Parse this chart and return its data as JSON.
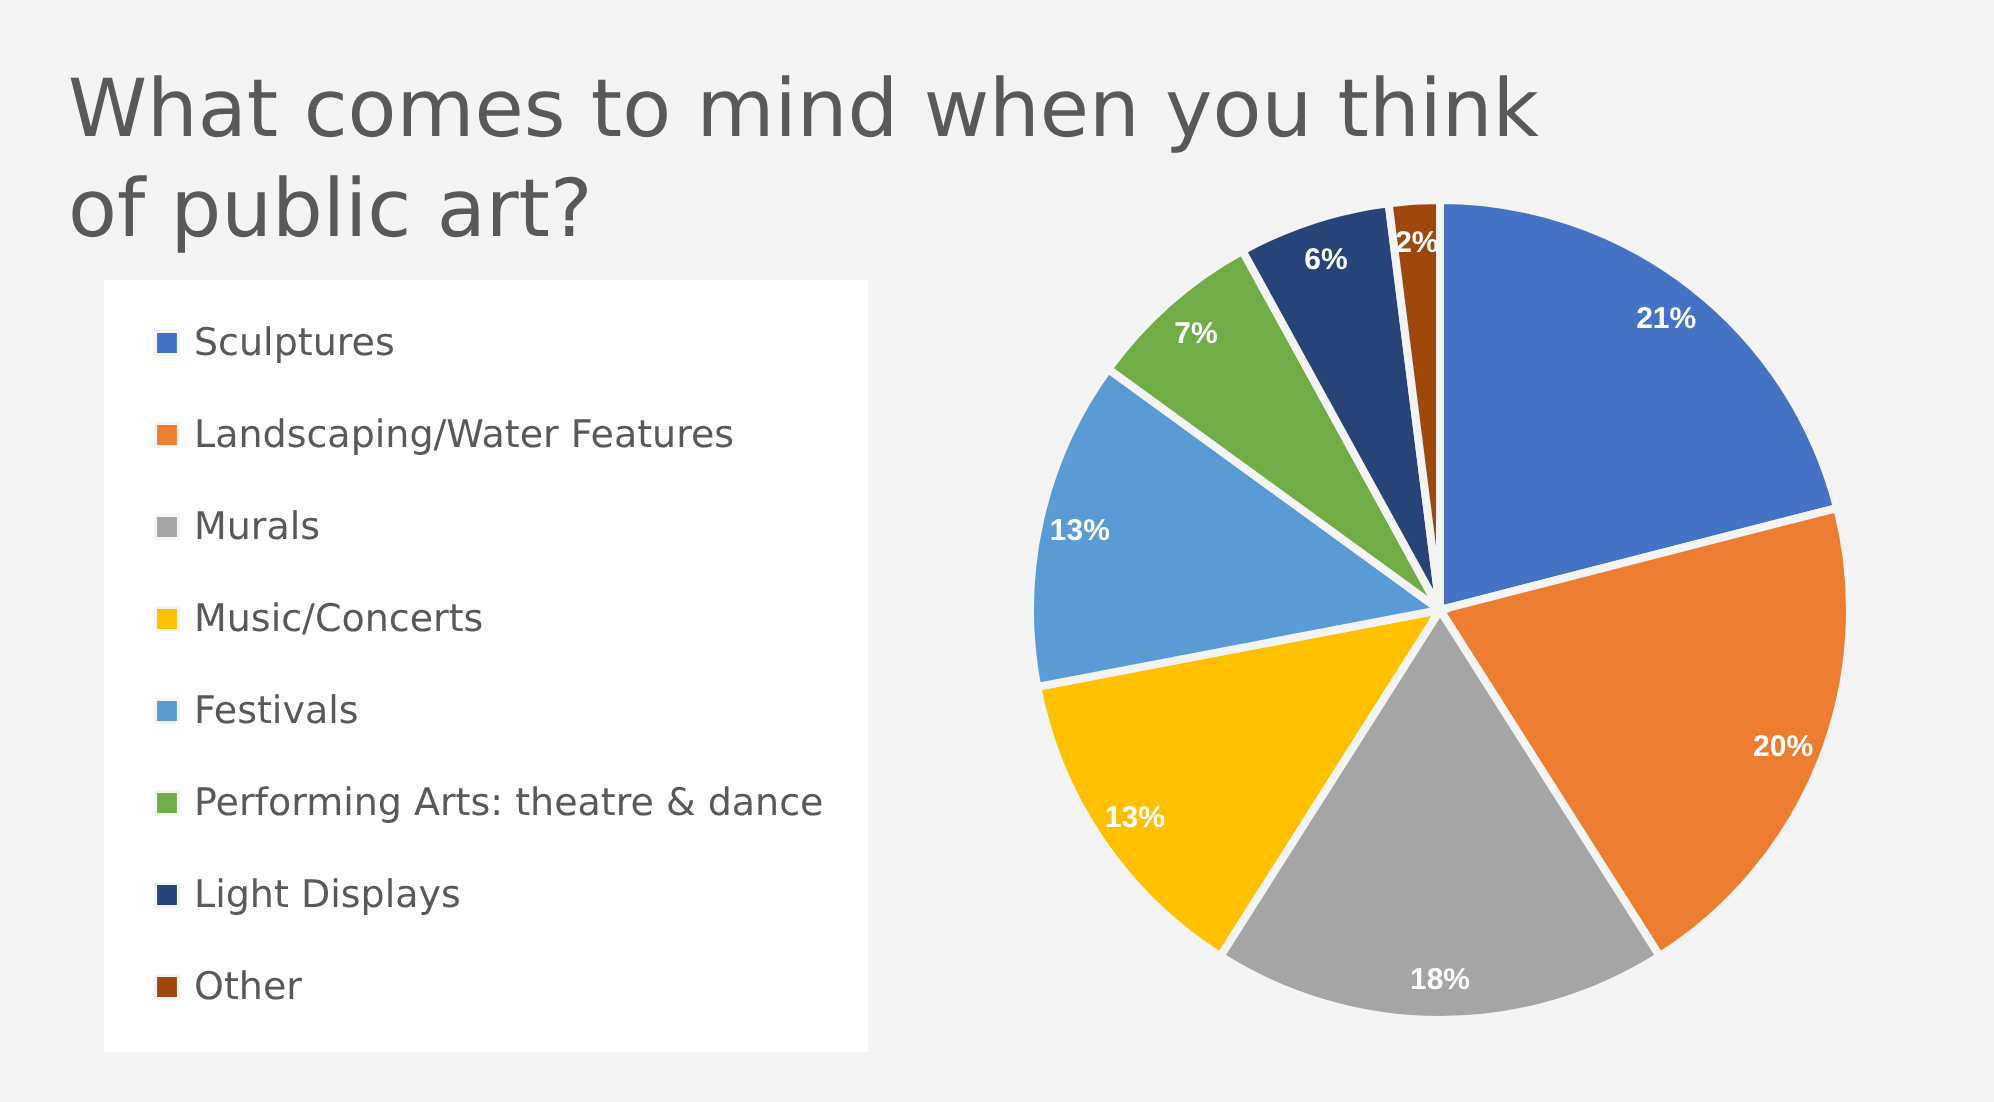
{
  "chart_data": {
    "type": "pie",
    "title": "What comes to mind when you think of public art?",
    "categories": [
      "Sculptures",
      "Landscaping/Water Features",
      "Murals",
      "Music/Concerts",
      "Festivals",
      "Performing Arts: theatre & dance",
      "Light Displays",
      "Other"
    ],
    "values": [
      21,
      20,
      18,
      13,
      13,
      7,
      6,
      2
    ],
    "colors": [
      "#4472c4",
      "#ed7d31",
      "#a5a5a5",
      "#ffc000",
      "#5b9bd5",
      "#70ad47",
      "#264478",
      "#9e480e"
    ],
    "value_labels": [
      "21%",
      "20%",
      "18%",
      "13%",
      "13%",
      "7%",
      "6%",
      "2%"
    ],
    "legend": "left"
  }
}
